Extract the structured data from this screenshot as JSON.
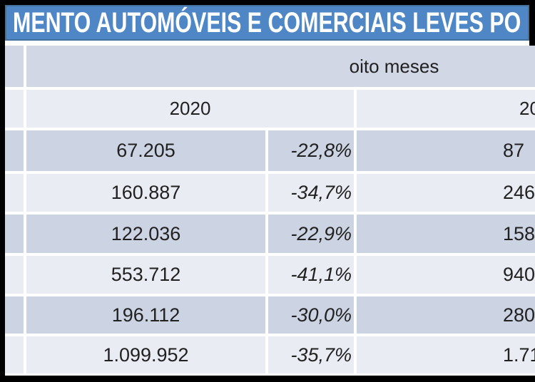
{
  "title": "MENTO AUTOMÓVEIS E COMERCIAIS LEVES PO",
  "table": {
    "period_header": "oito meses",
    "year_left": "2020",
    "year_right_fragment": "20",
    "rows": [
      {
        "value_2020": "67.205",
        "pct_2020": "-22,8%",
        "value_2019_fragment": "87"
      },
      {
        "value_2020": "160.887",
        "pct_2020": "-34,7%",
        "value_2019_fragment": "246"
      },
      {
        "value_2020": "122.036",
        "pct_2020": "-22,9%",
        "value_2019_fragment": "158"
      },
      {
        "value_2020": "553.712",
        "pct_2020": "-41,1%",
        "value_2019_fragment": "940"
      },
      {
        "value_2020": "196.112",
        "pct_2020": "-30,0%",
        "value_2019_fragment": "280"
      },
      {
        "value_2020": "1.099.952",
        "pct_2020": "-35,7%",
        "value_2019_fragment": "1.71"
      }
    ]
  },
  "colors": {
    "frame": "#000000",
    "title_fill": "#4e86c6",
    "title_border": "#41719c",
    "title_text": "#ffffff",
    "row_band_medium": "#d1d7e5",
    "row_band_dark": "#ccd3e2",
    "row_band_light": "#e9ecf3",
    "cell_border": "#ffffff",
    "cell_text": "#212121"
  }
}
